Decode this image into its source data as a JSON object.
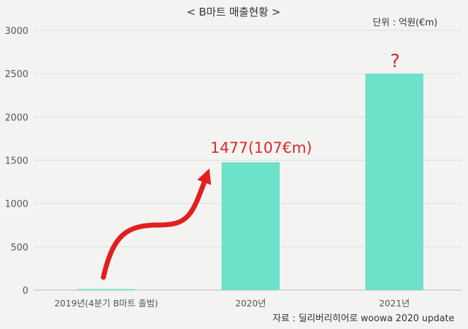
{
  "chart_data": {
    "type": "bar",
    "title": "< B마트 매출현황 >",
    "unit_label": "단위 : 억원(€m)",
    "source": "자료 : 딜리버리히어로 woowa 2020 update",
    "categories": [
      "2019년(4분기  B마트 출범)",
      "2020년",
      "2021년"
    ],
    "values": [
      12,
      1477,
      2500
    ],
    "ylim": [
      0,
      3000
    ],
    "yticks": [
      "0",
      "500",
      "1000",
      "1500",
      "2000",
      "2500",
      "3000"
    ],
    "ytick_values": [
      0,
      500,
      1000,
      1500,
      2000,
      2500,
      3000
    ],
    "grid": true,
    "bar_color": "#6ce2c8",
    "accent_color": "#e21f1f",
    "annotations": {
      "bar_2020": "1477(107€m)",
      "bar_2021": "?"
    }
  }
}
